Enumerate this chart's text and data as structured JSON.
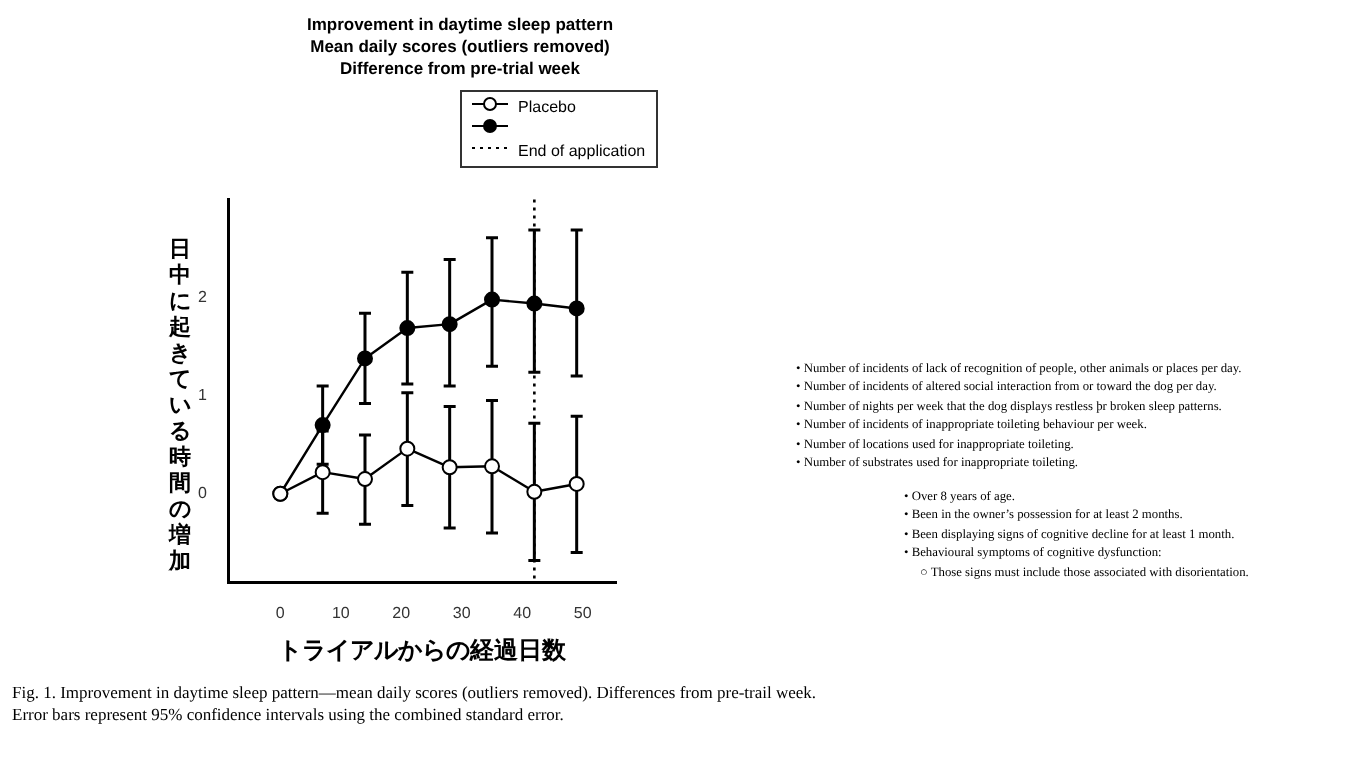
{
  "chart_data": {
    "type": "line",
    "title": "Improvement in daytime sleep pattern",
    "subtitle": "Mean daily scores (outliers removed)\nDifference from pre-trial week",
    "xlabel": "トライアルからの経過日数",
    "ylabel": "日中に起きている時間の増加",
    "x": [
      0,
      7,
      14,
      21,
      28,
      35,
      42,
      49
    ],
    "series": [
      {
        "name": "Placebo",
        "color": "#ffffff",
        "values": [
          0,
          0.22,
          0.15,
          0.46,
          0.27,
          0.28,
          0.02,
          0.1
        ],
        "errors": [
          null,
          [
            -0.2,
            0.64
          ],
          [
            -0.31,
            0.6
          ],
          [
            -0.12,
            1.03
          ],
          [
            -0.35,
            0.89
          ],
          [
            -0.4,
            0.95
          ],
          [
            -0.68,
            0.72
          ],
          [
            -0.6,
            0.79
          ]
        ]
      },
      {
        "color": "#000000",
        "values": [
          0,
          0.7,
          1.38,
          1.69,
          1.73,
          1.98,
          1.94,
          1.89
        ],
        "errors": [
          null,
          [
            0.3,
            1.1
          ],
          [
            0.92,
            1.84
          ],
          [
            1.12,
            2.26
          ],
          [
            1.1,
            2.39
          ],
          [
            1.3,
            2.61
          ],
          [
            1.24,
            2.69
          ],
          [
            1.2,
            2.69
          ]
        ]
      }
    ],
    "xlim": [
      -8.5,
      55.5
    ],
    "xticks": [
      0,
      10,
      20,
      30,
      40,
      50
    ],
    "ylim": [
      -0.9,
      3
    ],
    "yticks": [
      0,
      1,
      2
    ],
    "ref_lines": [
      {
        "axis": "x",
        "value": 42,
        "label": "End of application",
        "line_style": "dotted",
        "color": "#000000"
      }
    ],
    "marker": "circle",
    "legend": "top right",
    "grid": false,
    "annotations": [
      "Fig. 1.  Improvement in daytime sleep pattern—mean daily scores (outliers removed). Differences from pre-trail week.",
      "Error bars represent 95% confidence intervals using the combined standard error.",
      "• Number of incidents of lack of recognition of people, other animals or places per day.",
      "• Number of incidents of altered social interaction from or toward the dog per day.",
      "• Number of nights per week that the dog displays restless þr broken sleep patterns.",
      "• Number of incidents of inappropriate toileting behaviour per week.",
      "• Number of locations used for inappropriate toileting.",
      "• Number of substrates used for inappropriate toileting.",
      "• Over 8 years of age.",
      "• Been in the owner’s possession for at least 2 months.",
      "• Been displaying signs of cognitive decline for at least 1 month.",
      "• Behavioural symptoms of cognitive dysfunction:",
      "○ Those signs must include those associated with disorientation."
    ]
  }
}
